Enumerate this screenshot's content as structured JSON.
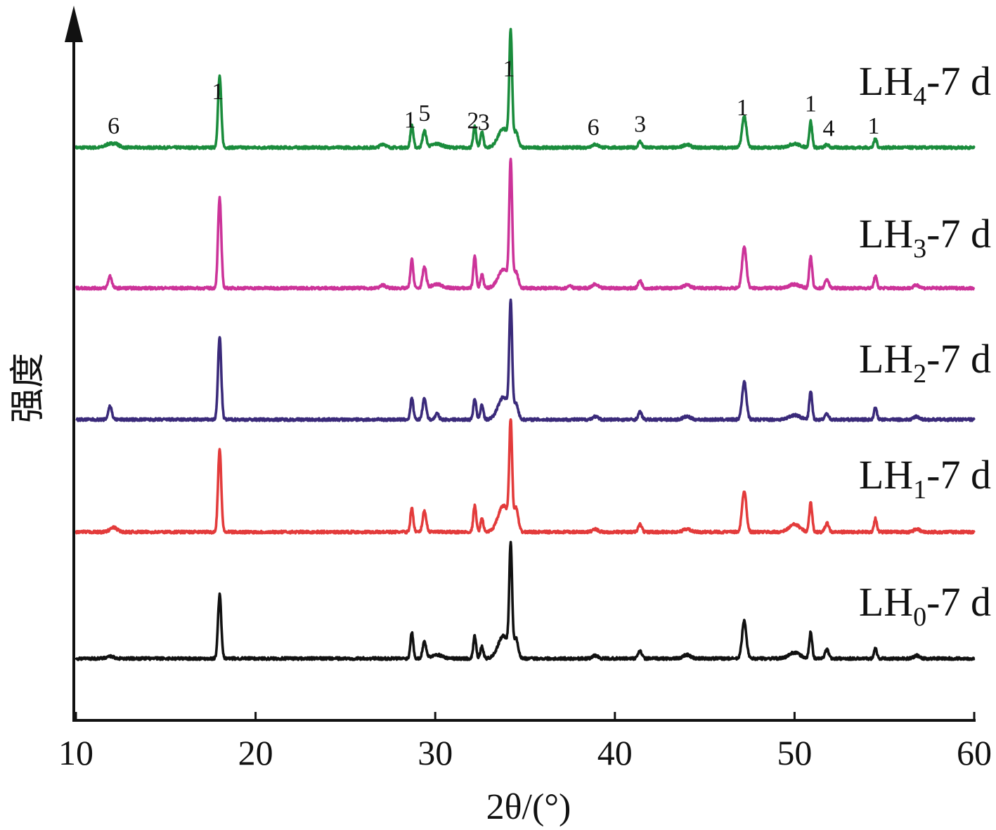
{
  "chart_data": {
    "type": "line",
    "title": "",
    "xlabel": "2θ/(°)",
    "ylabel": "强度",
    "xlim": [
      10,
      60
    ],
    "x_ticks": [
      10,
      20,
      30,
      40,
      50,
      60
    ],
    "y_ticks_shown": false,
    "legend": "inline-right",
    "series": [
      {
        "label": {
          "main": "LH",
          "sub": "4",
          "rest": "-7 d"
        },
        "color": "#1a8c3c",
        "scale": 1.0,
        "peaks": [
          [
            11.8,
            0.04,
            0.2
          ],
          [
            12.2,
            0.05,
            0.2
          ],
          [
            18.0,
            0.95,
            0.09
          ],
          [
            27.1,
            0.05,
            0.15
          ],
          [
            28.7,
            0.3,
            0.08
          ],
          [
            29.4,
            0.22,
            0.1
          ],
          [
            30.1,
            0.05,
            0.3
          ],
          [
            32.2,
            0.28,
            0.08
          ],
          [
            32.6,
            0.22,
            0.08
          ],
          [
            33.8,
            0.25,
            0.3
          ],
          [
            34.2,
            1.45,
            0.08
          ],
          [
            34.5,
            0.2,
            0.12
          ],
          [
            38.9,
            0.04,
            0.2
          ],
          [
            41.4,
            0.08,
            0.1
          ],
          [
            44.0,
            0.04,
            0.2
          ],
          [
            47.2,
            0.42,
            0.12
          ],
          [
            50.0,
            0.05,
            0.3
          ],
          [
            50.9,
            0.35,
            0.08
          ],
          [
            51.8,
            0.04,
            0.1
          ],
          [
            54.5,
            0.12,
            0.08
          ]
        ]
      },
      {
        "label": {
          "main": "LH",
          "sub": "3",
          "rest": "-7 d"
        },
        "color": "#cc3399",
        "scale": 1.0,
        "peaks": [
          [
            11.9,
            0.16,
            0.1
          ],
          [
            18.0,
            1.2,
            0.09
          ],
          [
            27.1,
            0.04,
            0.15
          ],
          [
            28.7,
            0.38,
            0.08
          ],
          [
            29.4,
            0.28,
            0.1
          ],
          [
            30.1,
            0.05,
            0.3
          ],
          [
            32.2,
            0.42,
            0.08
          ],
          [
            32.6,
            0.18,
            0.08
          ],
          [
            33.8,
            0.25,
            0.3
          ],
          [
            34.2,
            1.6,
            0.08
          ],
          [
            34.5,
            0.2,
            0.12
          ],
          [
            37.5,
            0.04,
            0.1
          ],
          [
            38.9,
            0.05,
            0.15
          ],
          [
            41.4,
            0.1,
            0.1
          ],
          [
            44.0,
            0.04,
            0.2
          ],
          [
            47.2,
            0.55,
            0.12
          ],
          [
            50.0,
            0.05,
            0.3
          ],
          [
            50.9,
            0.42,
            0.08
          ],
          [
            51.8,
            0.12,
            0.1
          ],
          [
            54.5,
            0.16,
            0.08
          ],
          [
            56.8,
            0.04,
            0.15
          ]
        ]
      },
      {
        "label": {
          "main": "LH",
          "sub": "2",
          "rest": "-7 d"
        },
        "color": "#3a2a7a",
        "scale": 1.0,
        "peaks": [
          [
            11.9,
            0.18,
            0.1
          ],
          [
            18.0,
            1.1,
            0.09
          ],
          [
            28.7,
            0.28,
            0.08
          ],
          [
            29.4,
            0.28,
            0.1
          ],
          [
            30.1,
            0.08,
            0.1
          ],
          [
            32.2,
            0.28,
            0.08
          ],
          [
            32.6,
            0.2,
            0.08
          ],
          [
            33.8,
            0.3,
            0.3
          ],
          [
            34.2,
            1.45,
            0.08
          ],
          [
            34.5,
            0.2,
            0.12
          ],
          [
            38.9,
            0.04,
            0.15
          ],
          [
            41.4,
            0.1,
            0.1
          ],
          [
            44.0,
            0.04,
            0.2
          ],
          [
            47.2,
            0.5,
            0.12
          ],
          [
            50.0,
            0.06,
            0.3
          ],
          [
            50.9,
            0.38,
            0.08
          ],
          [
            51.8,
            0.08,
            0.1
          ],
          [
            54.5,
            0.16,
            0.08
          ],
          [
            56.8,
            0.04,
            0.15
          ]
        ]
      },
      {
        "label": {
          "main": "LH",
          "sub": "1",
          "rest": "-7 d"
        },
        "color": "#e33b3b",
        "scale": 1.0,
        "peaks": [
          [
            12.1,
            0.06,
            0.2
          ],
          [
            18.0,
            1.1,
            0.09
          ],
          [
            28.7,
            0.32,
            0.08
          ],
          [
            29.4,
            0.28,
            0.1
          ],
          [
            32.2,
            0.35,
            0.08
          ],
          [
            32.6,
            0.18,
            0.08
          ],
          [
            33.8,
            0.35,
            0.3
          ],
          [
            34.2,
            1.35,
            0.08
          ],
          [
            34.5,
            0.3,
            0.12
          ],
          [
            38.9,
            0.04,
            0.15
          ],
          [
            41.4,
            0.1,
            0.1
          ],
          [
            44.0,
            0.04,
            0.2
          ],
          [
            47.2,
            0.55,
            0.12
          ],
          [
            50.0,
            0.1,
            0.3
          ],
          [
            50.9,
            0.4,
            0.08
          ],
          [
            51.8,
            0.12,
            0.1
          ],
          [
            54.5,
            0.18,
            0.08
          ],
          [
            56.8,
            0.04,
            0.15
          ]
        ]
      },
      {
        "label": {
          "main": "LH",
          "sub": "0",
          "rest": "-7 d"
        },
        "color": "#111111",
        "scale": 1.0,
        "peaks": [
          [
            11.9,
            0.03,
            0.2
          ],
          [
            18.0,
            0.85,
            0.09
          ],
          [
            28.7,
            0.35,
            0.08
          ],
          [
            29.4,
            0.22,
            0.1
          ],
          [
            30.1,
            0.05,
            0.3
          ],
          [
            32.2,
            0.3,
            0.08
          ],
          [
            32.6,
            0.16,
            0.08
          ],
          [
            33.8,
            0.3,
            0.3
          ],
          [
            34.2,
            1.4,
            0.08
          ],
          [
            34.5,
            0.25,
            0.12
          ],
          [
            38.9,
            0.04,
            0.15
          ],
          [
            41.4,
            0.1,
            0.1
          ],
          [
            44.0,
            0.05,
            0.2
          ],
          [
            47.2,
            0.5,
            0.12
          ],
          [
            50.0,
            0.08,
            0.3
          ],
          [
            50.9,
            0.35,
            0.08
          ],
          [
            51.8,
            0.12,
            0.1
          ],
          [
            54.5,
            0.14,
            0.08
          ],
          [
            56.8,
            0.04,
            0.15
          ]
        ]
      }
    ],
    "peak_annotations": [
      {
        "text": "6",
        "x": 12.1
      },
      {
        "text": "1",
        "x": 17.9
      },
      {
        "text": "1",
        "x": 28.6
      },
      {
        "text": "5",
        "x": 29.4
      },
      {
        "text": "2",
        "x": 32.1
      },
      {
        "text": "3",
        "x": 32.7
      },
      {
        "text": "1",
        "x": 34.1
      },
      {
        "text": "6",
        "x": 38.8
      },
      {
        "text": "3",
        "x": 41.4
      },
      {
        "text": "1",
        "x": 47.1
      },
      {
        "text": "1",
        "x": 50.9
      },
      {
        "text": "4",
        "x": 51.9
      },
      {
        "text": "1",
        "x": 54.4
      }
    ]
  }
}
